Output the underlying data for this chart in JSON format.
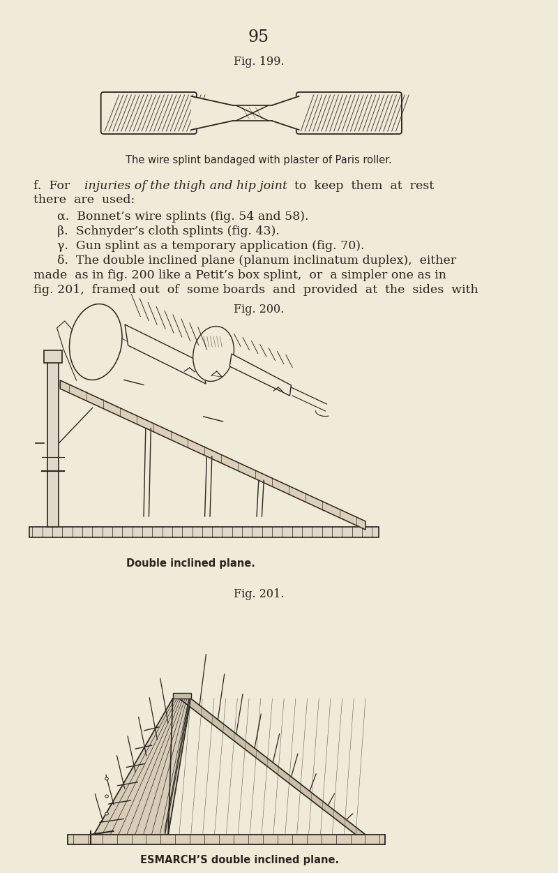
{
  "bg_color": "#f0ead8",
  "page_number": "95",
  "fig199_label": "Fig. 199.",
  "fig199_caption": "The wire splint bandaged with plaster of Paris roller.",
  "fig200_label": "Fig. 200.",
  "fig200_caption": "Double inclined plane.",
  "fig201_label": "Fig. 201.",
  "fig201_caption": "ESMARCH’S double inclined plane.",
  "text_color": "#2a2520",
  "line_color": "#2a2520",
  "body_fontsize": 12.5,
  "caption_fontsize": 10.5
}
